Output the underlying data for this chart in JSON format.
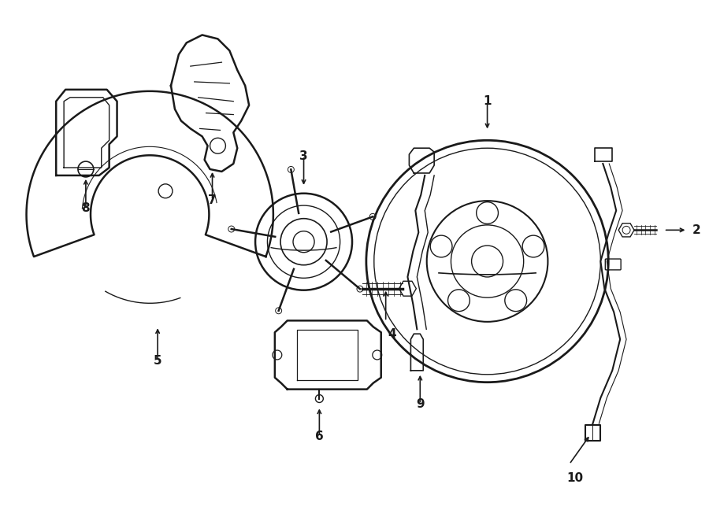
{
  "bg_color": "#ffffff",
  "line_color": "#1a1a1a",
  "fig_width": 9.0,
  "fig_height": 6.62
}
